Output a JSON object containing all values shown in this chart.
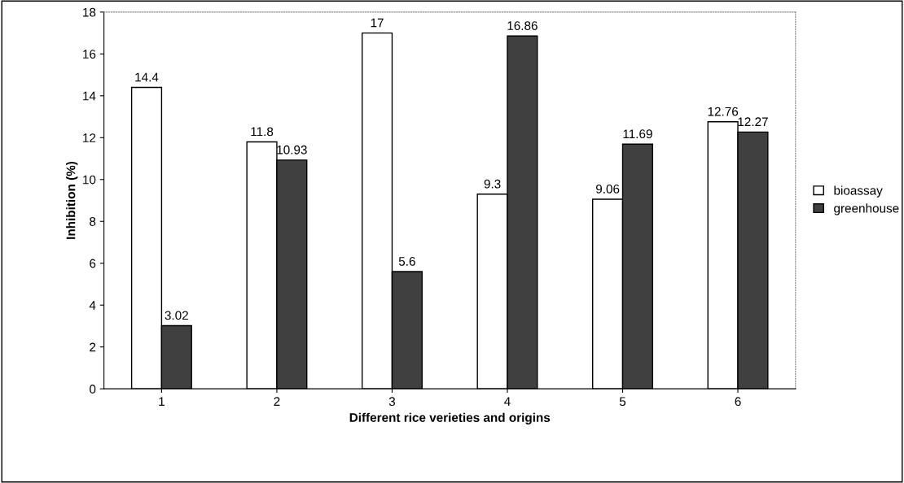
{
  "chart_data": {
    "type": "bar",
    "xlabel": "Different rice verieties and origins",
    "ylabel": "Inhibition (%)",
    "categories": [
      "1",
      "2",
      "3",
      "4",
      "5",
      "6"
    ],
    "series": [
      {
        "name": "bioassay",
        "color": "#ffffff",
        "values": [
          14.4,
          11.8,
          17,
          9.3,
          9.06,
          12.76
        ]
      },
      {
        "name": "greenhouse",
        "color": "#404040",
        "values": [
          3.02,
          10.93,
          5.6,
          16.86,
          11.69,
          12.27
        ]
      }
    ],
    "ylim": [
      0,
      18
    ],
    "yticks": [
      0,
      2,
      4,
      6,
      8,
      10,
      12,
      14,
      16,
      18
    ],
    "data_labels": true,
    "grid": false,
    "legend": "right"
  }
}
